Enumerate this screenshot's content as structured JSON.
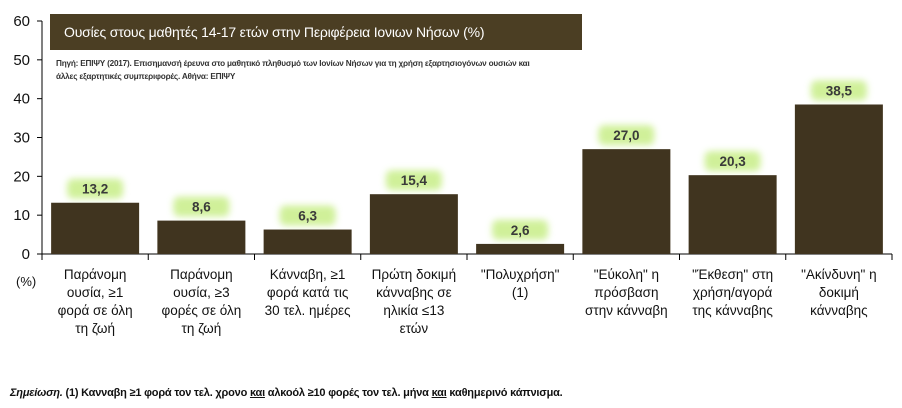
{
  "chart_data": {
    "type": "bar",
    "title": "Ουσίες στους μαθητές 14-17 ετών στην Περιφέρεια Ιονιων Νήσων  (%)",
    "source": "Πηγή: ΕΠΙΨΥ (2017). Επισημανσή έρευνα στο μαθητικό πληθυσμό των Ιονίων Νήσων για τη χρήση εξαρτησιογόνων ουσιών και άλλες εξαρτητικές συμπεριφορές. Αθήνα: ΕΠΙΨΥ",
    "unit_label": "(%)",
    "categories": [
      "Παράνομη\nουσία, ≥1\nφορά σε όλη\nτη ζωή",
      "Παράνομη\nουσία, ≥3\nφορές σε όλη\nτη ζωή",
      "Κάνναβη, ≥1\nφορά κατά τις\n30 τελ. ημέρες",
      "Πρώτη δοκιμή\nκάνναβης σε\nηλικία ≤13\nετών",
      "\"Πολυχρήση\"\n(1)",
      "\"Εύκολη\" η\nπρόσβαση\nστην κάνναβη",
      "\"Έκθεση\" στη\nχρήση/αγορά\nτης κάνναβης",
      "\"Ακίνδυνη\" η\nδοκιμή\nκάνναβης"
    ],
    "values": [
      13.2,
      8.6,
      6.3,
      15.4,
      2.6,
      27.0,
      20.3,
      38.5
    ],
    "value_labels": [
      "13,2",
      "8,6",
      "6,3",
      "15,4",
      "2,6",
      "27,0",
      "20,3",
      "38,5"
    ],
    "y_ticks": [
      0,
      10,
      20,
      30,
      40,
      50,
      60
    ],
    "ylim": [
      0,
      60
    ],
    "grid": false,
    "bar_color": "#40341f",
    "glow_color": "#c8ee88"
  },
  "note": {
    "lead": "Σημείωση.",
    "text_a": " (1) Κανναβη ≥1 φορά τον τελ. χρονο ",
    "and1": "και",
    "text_b": " αλκοόλ ≥10 φορές τον τελ. μήνα ",
    "and2": "και",
    "text_c": " καθημερινό κάπνισμα."
  }
}
